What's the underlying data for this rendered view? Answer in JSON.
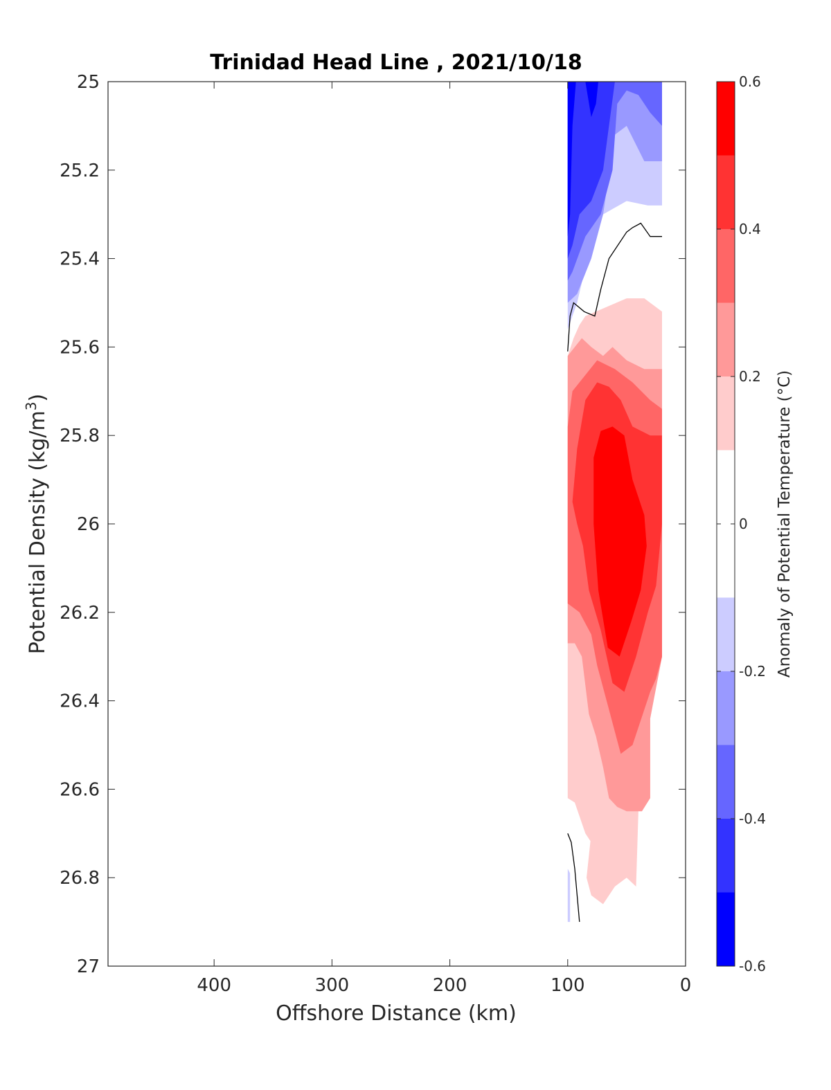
{
  "chart_data": {
    "type": "contour",
    "title": "Trinidad Head Line , 2021/10/18",
    "xlabel": "Offshore Distance (km)",
    "ylabel": "Potential Density (kg/m",
    "ylabel_sup": "3",
    "ylabel_close": ")",
    "xlim": [
      490,
      0
    ],
    "ylim": [
      25,
      27
    ],
    "x_reversed": true,
    "y_reversed": true,
    "xticks": [
      400,
      300,
      200,
      100,
      0
    ],
    "yticks": [
      25,
      25.2,
      25.4,
      25.6,
      25.8,
      26,
      26.2,
      26.4,
      26.6,
      26.8,
      27
    ],
    "colorbar": {
      "label": "Anomaly of Potential Temperature (°C)",
      "range": [
        -0.6,
        0.6
      ],
      "ticks": [
        -0.6,
        -0.4,
        -0.2,
        0,
        0.2,
        0.4,
        0.6
      ],
      "levels": [
        {
          "from": -0.6,
          "to": -0.5,
          "color": "#0000ff"
        },
        {
          "from": -0.5,
          "to": -0.4,
          "color": "#3333ff"
        },
        {
          "from": -0.4,
          "to": -0.3,
          "color": "#6666ff"
        },
        {
          "from": -0.3,
          "to": -0.2,
          "color": "#9999ff"
        },
        {
          "from": -0.2,
          "to": -0.1,
          "color": "#ccccff"
        },
        {
          "from": -0.1,
          "to": 0.1,
          "color": "#ffffff"
        },
        {
          "from": 0.1,
          "to": 0.2,
          "color": "#ffcccc"
        },
        {
          "from": 0.2,
          "to": 0.3,
          "color": "#ff9999"
        },
        {
          "from": 0.3,
          "to": 0.4,
          "color": "#ff6666"
        },
        {
          "from": 0.4,
          "to": 0.5,
          "color": "#ff3333"
        },
        {
          "from": 0.5,
          "to": 0.6,
          "color": "#ff0000"
        }
      ]
    },
    "regions": [
      {
        "level": -0.2,
        "points": [
          [
            100,
            25
          ],
          [
            20,
            25
          ],
          [
            20,
            25.28
          ],
          [
            32,
            25.28
          ],
          [
            50,
            25.27
          ],
          [
            70,
            25.3
          ],
          [
            85,
            25.42
          ],
          [
            92,
            25.5
          ],
          [
            100,
            25.56
          ]
        ]
      },
      {
        "level": -0.3,
        "points": [
          [
            100,
            25
          ],
          [
            20,
            25
          ],
          [
            20,
            25.18
          ],
          [
            35,
            25.18
          ],
          [
            50,
            25.1
          ],
          [
            60,
            25.12
          ],
          [
            70,
            25.3
          ],
          [
            80,
            25.4
          ],
          [
            92,
            25.48
          ],
          [
            100,
            25.5
          ]
        ]
      },
      {
        "level": -0.4,
        "points": [
          [
            100,
            25
          ],
          [
            20,
            25
          ],
          [
            20,
            25.1
          ],
          [
            30,
            25.07
          ],
          [
            40,
            25.03
          ],
          [
            50,
            25.02
          ],
          [
            58,
            25.05
          ],
          [
            62,
            25.2
          ],
          [
            72,
            25.3
          ],
          [
            85,
            25.35
          ],
          [
            96,
            25.43
          ],
          [
            100,
            25.45
          ]
        ]
      },
      {
        "level": -0.5,
        "points": [
          [
            100,
            25
          ],
          [
            60,
            25
          ],
          [
            65,
            25.1
          ],
          [
            70,
            25.2
          ],
          [
            80,
            25.27
          ],
          [
            90,
            25.3
          ],
          [
            96,
            25.37
          ],
          [
            100,
            25.4
          ]
        ]
      },
      {
        "level": -0.6,
        "points": [
          [
            100,
            25
          ],
          [
            93,
            25
          ],
          [
            96,
            25.1
          ],
          [
            97,
            25.2
          ],
          [
            98,
            25.3
          ],
          [
            100,
            25.35
          ]
        ]
      },
      {
        "level": -0.6,
        "points": [
          [
            85,
            25
          ],
          [
            74,
            25
          ],
          [
            76,
            25.05
          ],
          [
            80,
            25.08
          ]
        ]
      },
      {
        "level": 0.1,
        "points": [
          [
            85,
            25.53
          ],
          [
            50,
            25.49
          ],
          [
            35,
            25.49
          ],
          [
            20,
            25.52
          ],
          [
            20,
            26.3
          ],
          [
            30,
            26.44
          ],
          [
            30,
            26.62
          ],
          [
            40,
            26.65
          ],
          [
            42,
            26.82
          ],
          [
            50,
            26.8
          ],
          [
            60,
            26.82
          ],
          [
            70,
            26.86
          ],
          [
            80,
            26.84
          ],
          [
            84,
            26.8
          ],
          [
            80,
            26.7
          ],
          [
            80,
            26.72
          ],
          [
            85,
            26.7
          ],
          [
            94,
            26.63
          ],
          [
            100,
            26.62
          ],
          [
            100,
            25.62
          ],
          [
            95,
            25.58
          ],
          [
            90,
            25.55
          ]
        ]
      },
      {
        "level": -0.2,
        "points": [
          [
            100,
            26.78
          ],
          [
            98,
            26.79
          ],
          [
            98,
            26.9
          ],
          [
            100,
            26.9
          ]
        ]
      },
      {
        "level": 0.2,
        "points": [
          [
            100,
            25.62
          ],
          [
            88,
            25.58
          ],
          [
            80,
            25.6
          ],
          [
            70,
            25.62
          ],
          [
            62,
            25.6
          ],
          [
            50,
            25.63
          ],
          [
            35,
            25.65
          ],
          [
            20,
            25.65
          ],
          [
            20,
            26.3
          ],
          [
            30,
            26.44
          ],
          [
            30,
            26.62
          ],
          [
            37,
            26.65
          ],
          [
            50,
            26.65
          ],
          [
            58,
            26.64
          ],
          [
            65,
            26.62
          ],
          [
            70,
            26.55
          ],
          [
            76,
            26.48
          ],
          [
            82,
            26.43
          ],
          [
            88,
            26.3
          ],
          [
            94,
            26.27
          ],
          [
            100,
            26.27
          ]
        ]
      },
      {
        "level": 0.3,
        "points": [
          [
            100,
            25.78
          ],
          [
            96,
            25.7
          ],
          [
            87,
            25.67
          ],
          [
            75,
            25.63
          ],
          [
            60,
            25.65
          ],
          [
            45,
            25.68
          ],
          [
            30,
            25.72
          ],
          [
            20,
            25.74
          ],
          [
            20,
            26.3
          ],
          [
            25,
            26.35
          ],
          [
            30,
            26.38
          ],
          [
            35,
            26.42
          ],
          [
            45,
            26.5
          ],
          [
            55,
            26.52
          ],
          [
            65,
            26.42
          ],
          [
            75,
            26.32
          ],
          [
            80,
            26.25
          ],
          [
            90,
            26.2
          ],
          [
            100,
            26.18
          ]
        ]
      },
      {
        "level": 0.4,
        "points": [
          [
            96,
            25.95
          ],
          [
            92,
            25.83
          ],
          [
            85,
            25.72
          ],
          [
            75,
            25.68
          ],
          [
            65,
            25.69
          ],
          [
            55,
            25.72
          ],
          [
            45,
            25.78
          ],
          [
            30,
            25.8
          ],
          [
            20,
            25.8
          ],
          [
            20,
            26.0
          ],
          [
            25,
            26.14
          ],
          [
            32,
            26.2
          ],
          [
            42,
            26.3
          ],
          [
            52,
            26.38
          ],
          [
            62,
            26.36
          ],
          [
            72,
            26.24
          ],
          [
            82,
            26.15
          ],
          [
            87,
            26.05
          ],
          [
            92,
            26.0
          ]
        ]
      },
      {
        "level": 0.5,
        "points": [
          [
            78,
            25.85
          ],
          [
            72,
            25.79
          ],
          [
            62,
            25.78
          ],
          [
            52,
            25.8
          ],
          [
            45,
            25.9
          ],
          [
            35,
            25.98
          ],
          [
            33,
            26.05
          ],
          [
            38,
            26.15
          ],
          [
            46,
            26.22
          ],
          [
            56,
            26.3
          ],
          [
            66,
            26.28
          ],
          [
            74,
            26.15
          ],
          [
            78,
            26.0
          ]
        ]
      }
    ],
    "zero_contours": [
      [
        [
          100,
          25.61
        ],
        [
          98,
          25.53
        ],
        [
          95,
          25.5
        ],
        [
          86,
          25.52
        ],
        [
          77,
          25.53
        ],
        [
          72,
          25.47
        ],
        [
          65,
          25.4
        ],
        [
          50,
          25.34
        ],
        [
          45,
          25.33
        ],
        [
          38,
          25.32
        ],
        [
          30,
          25.35
        ],
        [
          20,
          25.35
        ]
      ],
      [
        [
          100,
          26.7
        ],
        [
          97,
          26.72
        ],
        [
          94,
          26.78
        ],
        [
          92,
          26.84
        ],
        [
          90,
          26.9
        ]
      ]
    ]
  }
}
